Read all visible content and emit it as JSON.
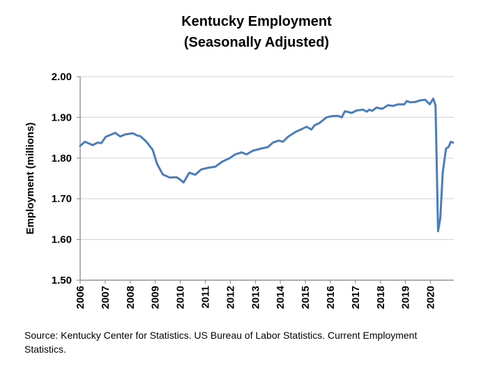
{
  "chart_data": {
    "type": "line",
    "title": [
      "Kentucky Employment",
      "(Seasonally Adjusted)"
    ],
    "xlabel": "",
    "ylabel": "Employment (millions)",
    "ylim": [
      1.5,
      2.0
    ],
    "xlim": [
      2006,
      2021
    ],
    "yticks": [
      "1.50",
      "1.60",
      "1.70",
      "1.80",
      "1.90",
      "2.00"
    ],
    "xticks": [
      "2006",
      "2007",
      "2008",
      "2009",
      "2010",
      "2011",
      "2012",
      "2013",
      "2014",
      "2015",
      "2016",
      "2017",
      "2018",
      "2019",
      "2020"
    ],
    "grid": true,
    "legend": "none",
    "series": [
      {
        "name": "Kentucky Employment",
        "color": "#4a7ebb",
        "x": [
          2006.0,
          2006.19,
          2006.5,
          2006.7,
          2006.85,
          2007.02,
          2007.4,
          2007.6,
          2007.8,
          2008.1,
          2008.3,
          2008.4,
          2008.65,
          2008.9,
          2009.07,
          2009.3,
          2009.58,
          2009.85,
          2009.98,
          2010.13,
          2010.36,
          2010.6,
          2010.83,
          2011.1,
          2011.4,
          2011.7,
          2011.98,
          2012.2,
          2012.45,
          2012.65,
          2012.9,
          2013.2,
          2013.5,
          2013.7,
          2013.94,
          2014.1,
          2014.3,
          2014.6,
          2014.85,
          2015.05,
          2015.24,
          2015.37,
          2015.56,
          2015.84,
          2016.05,
          2016.3,
          2016.45,
          2016.58,
          2016.85,
          2017.05,
          2017.3,
          2017.45,
          2017.55,
          2017.66,
          2017.84,
          2018.07,
          2018.3,
          2018.5,
          2018.7,
          2018.95,
          2019.05,
          2019.2,
          2019.4,
          2019.6,
          2019.79,
          2019.97,
          2020.11,
          2020.2,
          2020.3,
          2020.39,
          2020.49,
          2020.62,
          2020.72,
          2020.81,
          2020.9
        ],
        "y": [
          1.83,
          1.84,
          1.832,
          1.838,
          1.837,
          1.852,
          1.862,
          1.853,
          1.858,
          1.861,
          1.855,
          1.854,
          1.84,
          1.82,
          1.786,
          1.76,
          1.752,
          1.753,
          1.748,
          1.74,
          1.764,
          1.759,
          1.772,
          1.776,
          1.779,
          1.792,
          1.8,
          1.809,
          1.814,
          1.809,
          1.818,
          1.823,
          1.827,
          1.838,
          1.843,
          1.84,
          1.852,
          1.864,
          1.871,
          1.877,
          1.87,
          1.881,
          1.886,
          1.9,
          1.903,
          1.904,
          1.9,
          1.915,
          1.911,
          1.917,
          1.919,
          1.914,
          1.919,
          1.916,
          1.924,
          1.921,
          1.93,
          1.928,
          1.932,
          1.932,
          1.94,
          1.937,
          1.938,
          1.942,
          1.943,
          1.932,
          1.946,
          1.929,
          1.62,
          1.652,
          1.766,
          1.824,
          1.827,
          1.84,
          1.838
        ]
      }
    ],
    "source": "Source: Kentucky Center for Statistics. US Bureau of Labor Statistics. Current Employment Statistics."
  }
}
